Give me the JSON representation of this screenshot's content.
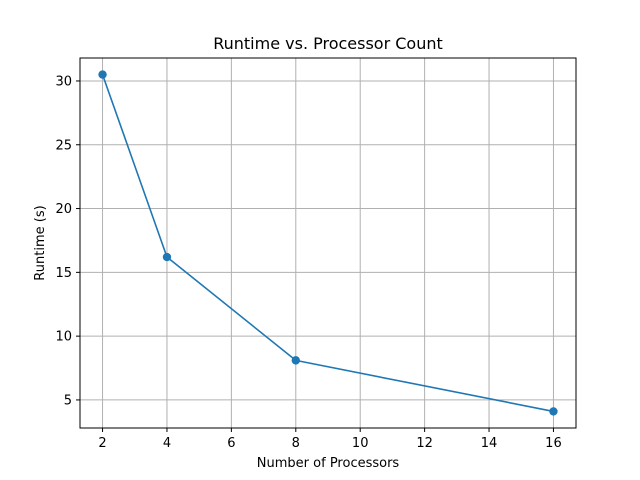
{
  "chart_data": {
    "type": "line",
    "title": "Runtime vs. Processor Count",
    "xlabel": "Number of Processors",
    "ylabel": "Runtime (s)",
    "x": [
      2,
      4,
      8,
      16
    ],
    "series": [
      {
        "values": [
          30.5,
          16.2,
          8.1,
          4.1
        ],
        "color": "#1f77b4",
        "marker": "circle"
      }
    ],
    "xlim": [
      1.3,
      16.7
    ],
    "ylim": [
      2.8,
      31.8
    ],
    "xticks": [
      2,
      4,
      6,
      8,
      10,
      12,
      14,
      16
    ],
    "yticks": [
      5,
      10,
      15,
      20,
      25,
      30
    ],
    "grid": true,
    "legend": "none"
  }
}
